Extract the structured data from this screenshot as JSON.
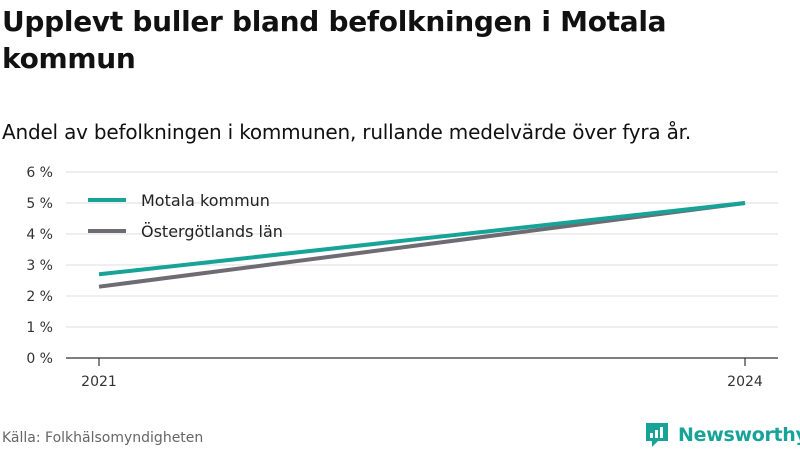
{
  "title": "Upplevt buller bland befolkningen i Motala kommun",
  "subtitle": "Andel av befolkningen i kommunen, rullande medelvärde över fyra år.",
  "footer": {
    "source": "Källa: Folkhälsomyndigheten",
    "brand": "Newsworthy"
  },
  "colors": {
    "motala": "#17a398",
    "ostergotland": "#6e6b73",
    "brand": "#17a398"
  },
  "chart_data": {
    "type": "line",
    "x": [
      2021,
      2024
    ],
    "x_tick_labels": [
      "2021",
      "2024"
    ],
    "ylim": [
      0,
      6
    ],
    "y_ticks": [
      0,
      1,
      2,
      3,
      4,
      5,
      6
    ],
    "y_tick_labels": [
      "0 %",
      "1 %",
      "2 %",
      "3 %",
      "4 %",
      "5 %",
      "6 %"
    ],
    "grid": true,
    "legend_position": "top-left",
    "series": [
      {
        "name": "Motala kommun",
        "color": "#17a398",
        "values": [
          2.7,
          5.0
        ]
      },
      {
        "name": "Östergötlands län",
        "color": "#6e6b73",
        "values": [
          2.3,
          5.0
        ]
      }
    ]
  }
}
